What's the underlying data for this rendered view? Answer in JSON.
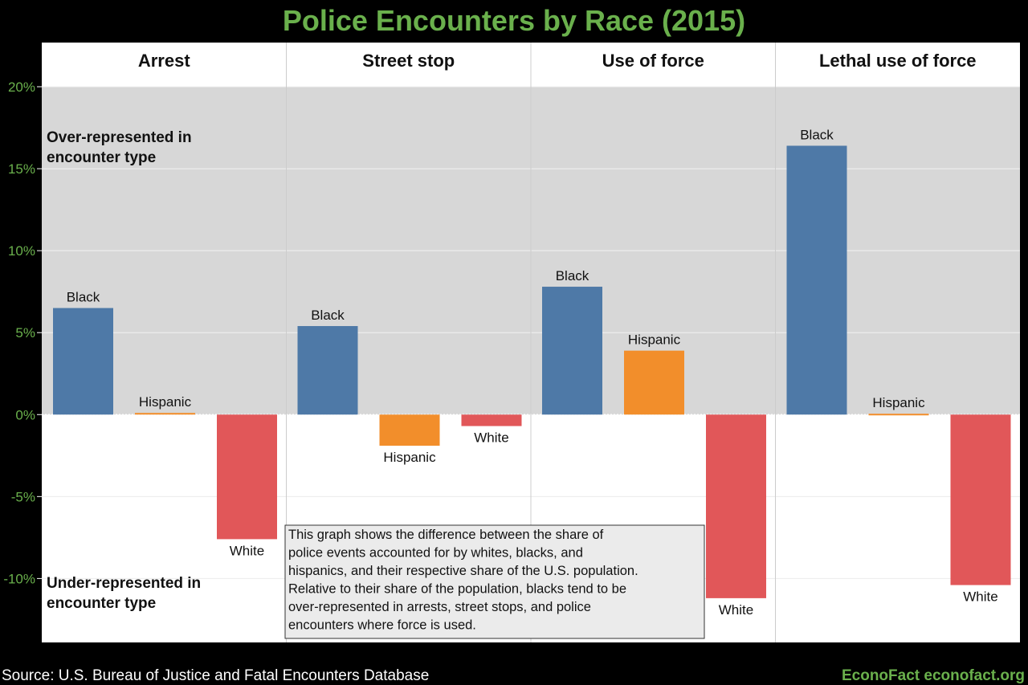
{
  "chart_data": {
    "type": "bar",
    "title": "Police Encounters by Race (2015)",
    "panels": [
      {
        "name": "Arrest",
        "values": {
          "Black": 6.5,
          "Hispanic": 0.1,
          "White": -7.6
        }
      },
      {
        "name": "Street stop",
        "values": {
          "Black": 5.4,
          "Hispanic": -1.9,
          "White": -0.7
        }
      },
      {
        "name": "Use of force",
        "values": {
          "Black": 7.8,
          "Hispanic": 3.9,
          "White": -11.2
        }
      },
      {
        "name": "Lethal use of force",
        "values": {
          "Black": 16.4,
          "Hispanic": 0.05,
          "White": -10.4
        }
      }
    ],
    "categories": [
      "Black",
      "Hispanic",
      "White"
    ],
    "colors": {
      "Black": "#4e79a7",
      "Hispanic": "#f28e2b",
      "White": "#e15759"
    },
    "ylim": [
      -13.9,
      20
    ],
    "yticks": [
      20,
      15,
      10,
      5,
      0,
      -5,
      -10
    ],
    "ytick_labels": [
      "20%",
      "15%",
      "10%",
      "5%",
      "0%",
      "-5%",
      "-10%"
    ],
    "grid": true,
    "annotations": {
      "over": [
        "Over-represented in",
        "encounter type"
      ],
      "under": [
        "Under-represented in",
        "encounter type"
      ],
      "note": [
        "This graph shows the difference between the share of",
        "police events accounted for by whites, blacks, and",
        "hispanics, and their respective share of the U.S. population.",
        "Relative to their share of the population, blacks tend to be",
        "over-represented in arrests, street stops, and police",
        "encounters where force is used."
      ]
    }
  },
  "footer": {
    "source": "Source: U.S. Bureau of Justice and Fatal Encounters Database",
    "brand": "EconoFact  econofact.org"
  },
  "title_color": "#6ab04c"
}
